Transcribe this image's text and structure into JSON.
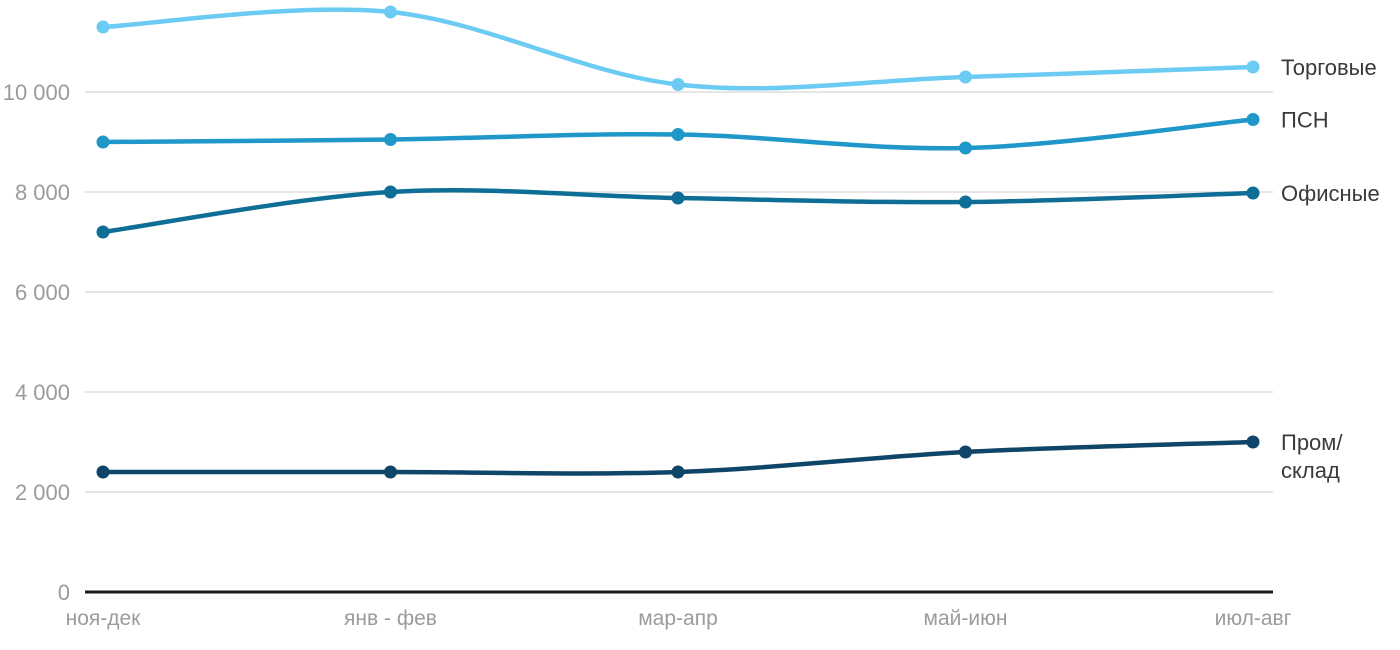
{
  "chart_data": {
    "type": "line",
    "title": "",
    "xlabel": "",
    "ylabel": "",
    "categories": [
      "ноя-дек",
      "янв - фев",
      "мар-апр",
      "май-июн",
      "июл-авг"
    ],
    "series": [
      {
        "name": "Торговые",
        "legend_label": "Торговые",
        "color": "#6CCBF3",
        "values": [
          11300,
          11600,
          10150,
          10300,
          10500
        ]
      },
      {
        "name": "ПСН",
        "legend_label": "ПСН",
        "color": "#1F97C9",
        "values": [
          9000,
          9050,
          9150,
          8880,
          9450
        ]
      },
      {
        "name": "Офисные",
        "legend_label": "Офисные",
        "color": "#0E6E96",
        "values": [
          7200,
          8000,
          7880,
          7800,
          7980
        ]
      },
      {
        "name": "Пром/склад",
        "legend_label": "Пром/\nсклад",
        "color": "#0F4568",
        "values": [
          2400,
          2400,
          2400,
          2800,
          3000
        ]
      }
    ],
    "ylim": [
      0,
      12000
    ],
    "yticks": [
      0,
      2000,
      4000,
      6000,
      8000,
      10000
    ],
    "ytick_labels": [
      "0",
      "2 000",
      "4 000",
      "6 000",
      "8 000",
      "10 000"
    ],
    "grid": true,
    "legend_position": "right-of-line-end"
  },
  "colors": {
    "background": "#FFFFFF",
    "gridline": "#E6E6E6",
    "axis_line": "#1B1B1B",
    "axis_text": "#9B9B9B",
    "legend_text": "#3A3A3A"
  }
}
